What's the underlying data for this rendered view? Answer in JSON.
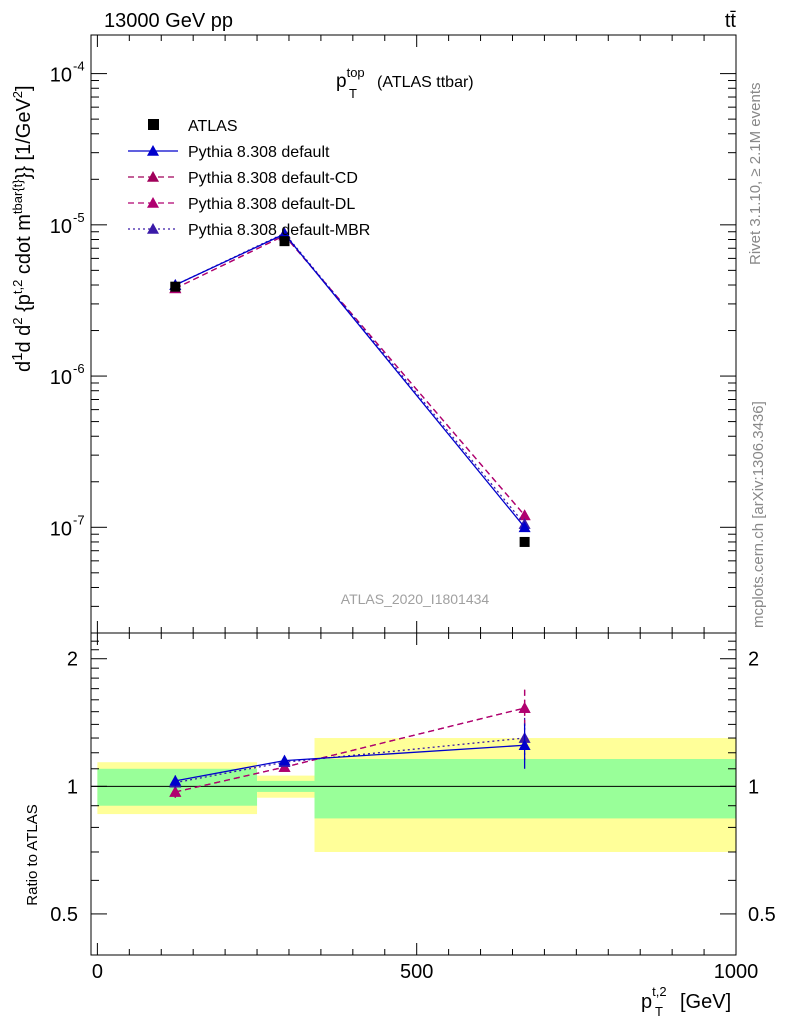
{
  "header": {
    "energy": "13000 GeV pp",
    "process": "tt̄"
  },
  "side_labels": {
    "rivet": "Rivet 3.1.10, ≥ 2.1M events",
    "mcplots": "mcplots.cern.ch [arXiv:1306.3436]"
  },
  "plot_title": {
    "main": "p",
    "sup": "top",
    "sub": "T",
    "rest": "(ATLAS ttbar)"
  },
  "analysis_id": "ATLAS_2020_I1801434",
  "y_axis": {
    "top": {
      "tick_labels": [
        "10",
        "10",
        "10",
        "10"
      ],
      "tick_exps": [
        "-4",
        "-5",
        "-6",
        "-7"
      ]
    },
    "ratio": {
      "label": "Ratio to ATLAS",
      "tick_labels": [
        "2",
        "1",
        "0.5"
      ]
    }
  },
  "x_axis": {
    "tick_labels": [
      "0",
      "500",
      "1000"
    ],
    "label_main": "p",
    "label_sup": "t,2",
    "label_sub": "T",
    "label_unit": "[GeV]"
  },
  "legend": [
    {
      "label": "ATLAS",
      "color": "#000000",
      "style": "marker-square"
    },
    {
      "label": "Pythia 8.308 default",
      "color": "#0000cc",
      "style": "solid"
    },
    {
      "label": "Pythia 8.308 default-CD",
      "color": "#a0005a",
      "style": "dashed"
    },
    {
      "label": "Pythia 8.308 default-DL",
      "color": "#b00070",
      "style": "dashed"
    },
    {
      "label": "Pythia 8.308 default-MBR",
      "color": "#3a1aa8",
      "style": "dotted"
    }
  ],
  "chart_data": {
    "type": "line",
    "x_scale": "linear",
    "y_scale": "log",
    "xlim": [
      -10,
      1000
    ],
    "ylim": [
      2e-08,
      0.00018
    ],
    "ratio_ylim": [
      0.4,
      2.3
    ],
    "bins": [
      [
        0,
        250
      ],
      [
        250,
        340
      ],
      [
        340,
        1000
      ]
    ],
    "x": [
      122,
      293,
      669
    ],
    "data": {
      "name": "ATLAS",
      "values": [
        3.9e-06,
        7.8e-06,
        8e-08
      ],
      "band_inner": [
        0.1,
        0.03,
        0.16
      ],
      "band_outer": [
        0.14,
        0.06,
        0.3
      ]
    },
    "series": [
      {
        "name": "Pythia 8.308 default",
        "values": [
          4e-06,
          8.7e-06,
          1e-07
        ],
        "ratio": [
          1.03,
          1.15,
          1.25
        ],
        "ratio_err": [
          0.03,
          0.03,
          0.15
        ]
      },
      {
        "name": "Pythia 8.308 default-CD",
        "values": [
          3.8e-06,
          8.5e-06,
          1.2e-07
        ],
        "ratio": [
          0.97,
          1.11,
          1.53
        ],
        "ratio_err": [
          0.03,
          0.03,
          0.16
        ]
      },
      {
        "name": "Pythia 8.308 default-DL",
        "values": [
          3.8e-06,
          8.5e-06,
          1.2e-07
        ],
        "ratio": [
          0.97,
          1.11,
          1.53
        ],
        "ratio_err": [
          0.03,
          0.03,
          0.16
        ]
      },
      {
        "name": "Pythia 8.308 default-MBR",
        "values": [
          4e-06,
          8.8e-06,
          1.05e-07
        ],
        "ratio": [
          1.02,
          1.14,
          1.3
        ],
        "ratio_err": [
          0.03,
          0.03,
          0.15
        ]
      }
    ]
  }
}
